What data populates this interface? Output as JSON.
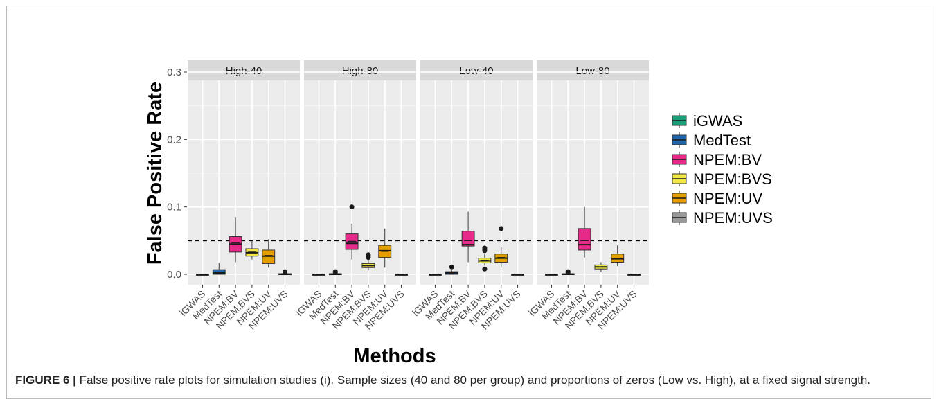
{
  "caption": {
    "label": "FIGURE 6 |",
    "text": " False positive rate plots for simulation studies (i). Sample sizes (40 and 80 per group) and proportions of zeros (Low vs. High), at a fixed signal strength."
  },
  "chart_data": {
    "type": "boxplot",
    "xlabel": "Methods",
    "ylabel": "False Positive Rate",
    "ylim": [
      0,
      0.3
    ],
    "yticks": [
      0.0,
      0.1,
      0.2,
      0.3
    ],
    "ytick_labels": [
      "0.0",
      "0.1",
      "0.2",
      "0.3"
    ],
    "reference_line": 0.05,
    "categories": [
      "iGWAS",
      "MedTest",
      "NPEM:BV",
      "NPEM:BVS",
      "NPEM:UV",
      "NPEM:UVS"
    ],
    "legend": {
      "position": "right",
      "entries": [
        "iGWAS",
        "MedTest",
        "NPEM:BV",
        "NPEM:BVS",
        "NPEM:UV",
        "NPEM:UVS"
      ]
    },
    "colors": {
      "iGWAS": "#1b9e77",
      "MedTest": "#2166ac",
      "NPEM:BV": "#e7298a",
      "NPEM:BVS": "#f2e845",
      "NPEM:UV": "#e69f00",
      "NPEM:UVS": "#999999"
    },
    "panels": [
      {
        "title": "High-40",
        "boxes": [
          {
            "method": "iGWAS",
            "min": 0,
            "q1": 0,
            "median": 0,
            "q3": 0,
            "max": 0,
            "mean": 0,
            "outliers": []
          },
          {
            "method": "MedTest",
            "min": 0,
            "q1": 0,
            "median": 0.002,
            "q3": 0.007,
            "max": 0.017,
            "mean": 0.003,
            "outliers": []
          },
          {
            "method": "NPEM:BV",
            "min": 0.018,
            "q1": 0.033,
            "median": 0.045,
            "q3": 0.056,
            "max": 0.085,
            "mean": 0.047,
            "outliers": []
          },
          {
            "method": "NPEM:BVS",
            "min": 0.022,
            "q1": 0.027,
            "median": 0.032,
            "q3": 0.038,
            "max": 0.049,
            "mean": 0.033,
            "outliers": []
          },
          {
            "method": "NPEM:UV",
            "min": 0.01,
            "q1": 0.016,
            "median": 0.027,
            "q3": 0.036,
            "max": 0.052,
            "mean": 0.028,
            "outliers": []
          },
          {
            "method": "NPEM:UVS",
            "min": 0,
            "q1": 0,
            "median": 0,
            "q3": 0.001,
            "max": 0.002,
            "mean": 0.0005,
            "outliers": [
              0.003,
              0.004
            ]
          }
        ]
      },
      {
        "title": "High-80",
        "boxes": [
          {
            "method": "iGWAS",
            "min": 0,
            "q1": 0,
            "median": 0,
            "q3": 0,
            "max": 0,
            "mean": 0,
            "outliers": []
          },
          {
            "method": "MedTest",
            "min": 0,
            "q1": 0,
            "median": 0,
            "q3": 0.001,
            "max": 0.002,
            "mean": 0.0005,
            "outliers": [
              0.003,
              0.004
            ]
          },
          {
            "method": "NPEM:BV",
            "min": 0.022,
            "q1": 0.037,
            "median": 0.046,
            "q3": 0.06,
            "max": 0.075,
            "mean": 0.049,
            "outliers": [
              0.1
            ]
          },
          {
            "method": "NPEM:BVS",
            "min": 0.006,
            "q1": 0.01,
            "median": 0.013,
            "q3": 0.016,
            "max": 0.022,
            "mean": 0.013,
            "outliers": [
              0.025,
              0.027,
              0.029
            ]
          },
          {
            "method": "NPEM:UV",
            "min": 0.01,
            "q1": 0.025,
            "median": 0.035,
            "q3": 0.043,
            "max": 0.068,
            "mean": 0.034,
            "outliers": []
          },
          {
            "method": "NPEM:UVS",
            "min": 0,
            "q1": 0,
            "median": 0,
            "q3": 0,
            "max": 0,
            "mean": 0,
            "outliers": []
          }
        ]
      },
      {
        "title": "Low-40",
        "boxes": [
          {
            "method": "iGWAS",
            "min": 0,
            "q1": 0,
            "median": 0,
            "q3": 0,
            "max": 0,
            "mean": 0,
            "outliers": []
          },
          {
            "method": "MedTest",
            "min": 0,
            "q1": 0,
            "median": 0.002,
            "q3": 0.004,
            "max": 0.006,
            "mean": 0.002,
            "outliers": [
              0.011
            ]
          },
          {
            "method": "NPEM:BV",
            "min": 0.018,
            "q1": 0.042,
            "median": 0.044,
            "q3": 0.064,
            "max": 0.093,
            "mean": 0.05,
            "outliers": []
          },
          {
            "method": "NPEM:BVS",
            "min": 0.013,
            "q1": 0.017,
            "median": 0.02,
            "q3": 0.024,
            "max": 0.03,
            "mean": 0.021,
            "outliers": [
              0.008,
              0.035,
              0.037,
              0.039
            ]
          },
          {
            "method": "NPEM:UV",
            "min": 0.01,
            "q1": 0.018,
            "median": 0.024,
            "q3": 0.03,
            "max": 0.04,
            "mean": 0.025,
            "outliers": [
              0.068
            ]
          },
          {
            "method": "NPEM:UVS",
            "min": 0,
            "q1": 0,
            "median": 0,
            "q3": 0,
            "max": 0,
            "mean": 0,
            "outliers": []
          }
        ]
      },
      {
        "title": "Low-80",
        "boxes": [
          {
            "method": "iGWAS",
            "min": 0,
            "q1": 0,
            "median": 0,
            "q3": 0,
            "max": 0,
            "mean": 0,
            "outliers": []
          },
          {
            "method": "MedTest",
            "min": 0,
            "q1": 0,
            "median": 0,
            "q3": 0.001,
            "max": 0.002,
            "mean": 0.0005,
            "outliers": [
              0.003,
              0.004
            ]
          },
          {
            "method": "NPEM:BV",
            "min": 0.025,
            "q1": 0.036,
            "median": 0.044,
            "q3": 0.068,
            "max": 0.1,
            "mean": 0.05,
            "outliers": []
          },
          {
            "method": "NPEM:BVS",
            "min": 0.003,
            "q1": 0.008,
            "median": 0.011,
            "q3": 0.014,
            "max": 0.018,
            "mean": 0.011,
            "outliers": []
          },
          {
            "method": "NPEM:UV",
            "min": 0.012,
            "q1": 0.018,
            "median": 0.023,
            "q3": 0.03,
            "max": 0.043,
            "mean": 0.024,
            "outliers": []
          },
          {
            "method": "NPEM:UVS",
            "min": 0,
            "q1": 0,
            "median": 0,
            "q3": 0,
            "max": 0,
            "mean": 0,
            "outliers": []
          }
        ]
      }
    ]
  }
}
